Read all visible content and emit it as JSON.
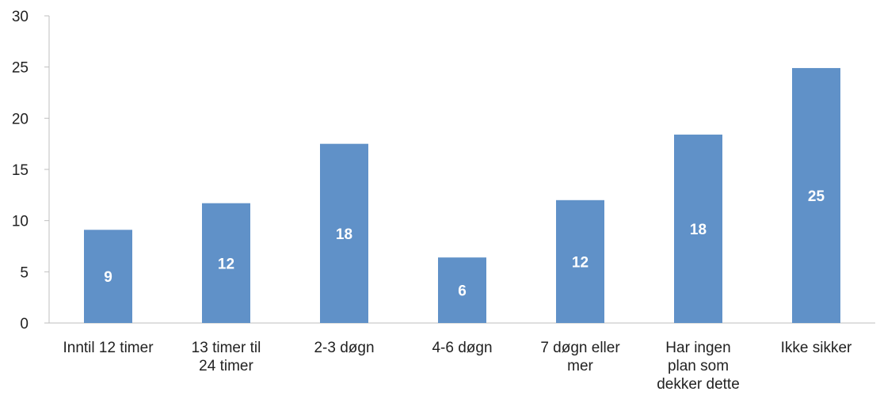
{
  "chart_data": {
    "type": "bar",
    "categories": [
      [
        "Inntil 12 timer"
      ],
      [
        "13 timer til",
        "24 timer"
      ],
      [
        "2-3 døgn"
      ],
      [
        "4-6 døgn"
      ],
      [
        "7 døgn eller",
        "mer"
      ],
      [
        "Har ingen",
        "plan som",
        "dekker dette"
      ],
      [
        "Ikke sikker"
      ]
    ],
    "values": [
      9.1,
      11.7,
      17.5,
      6.4,
      12.0,
      18.4,
      24.9
    ],
    "data_labels": [
      "9",
      "12",
      "18",
      "6",
      "12",
      "18",
      "25"
    ],
    "title": "",
    "xlabel": "",
    "ylabel": "",
    "ylim": [
      0,
      30
    ],
    "yticks": [
      "0",
      "5",
      "10",
      "15",
      "20",
      "25",
      "30"
    ],
    "grid": false,
    "legend": "none",
    "colors": {
      "bar": "#6091C8",
      "axis": "#BFBFBF",
      "label": "#FFFFFF"
    }
  }
}
